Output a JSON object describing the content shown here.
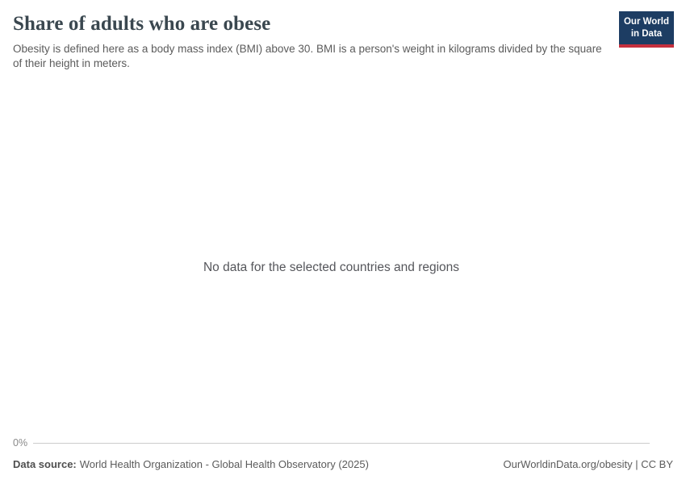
{
  "header": {
    "title": "Share of adults who are obese",
    "subtitle": "Obesity is defined here as a body mass index (BMI) above 30. BMI is a person's weight in kilograms divided by the square of their height in meters.",
    "logo": {
      "line1": "Our World",
      "line2": "in Data"
    }
  },
  "chart": {
    "no_data_message": "No data for the selected countries and regions",
    "y_axis": {
      "tick_label": "0%"
    }
  },
  "footer": {
    "source_label": "Data source:",
    "source_text": "World Health Organization - Global Health Observatory (2025)",
    "note_right": "OurWorldinData.org/obesity | CC BY"
  },
  "colors": {
    "title_text": "#3a474f",
    "body_text": "#5b5b5b",
    "tick_text": "#8a8a8a",
    "axis_line": "#cccccc",
    "logo_background": "#1d3d63",
    "logo_accent_red": "#c5303e"
  },
  "chart_data": {
    "type": "line",
    "title": "Share of adults who are obese",
    "subtitle": "Obesity is defined here as a body mass index (BMI) above 30. BMI is a person's weight in kilograms divided by the square of their height in meters.",
    "series": [],
    "categories": [],
    "y_ticks": [
      "0%"
    ],
    "ylim_shown_min": "0%",
    "grid": false,
    "legend_position": "none",
    "annotations": [
      "No data for the selected countries and regions"
    ],
    "empty_state": true
  }
}
